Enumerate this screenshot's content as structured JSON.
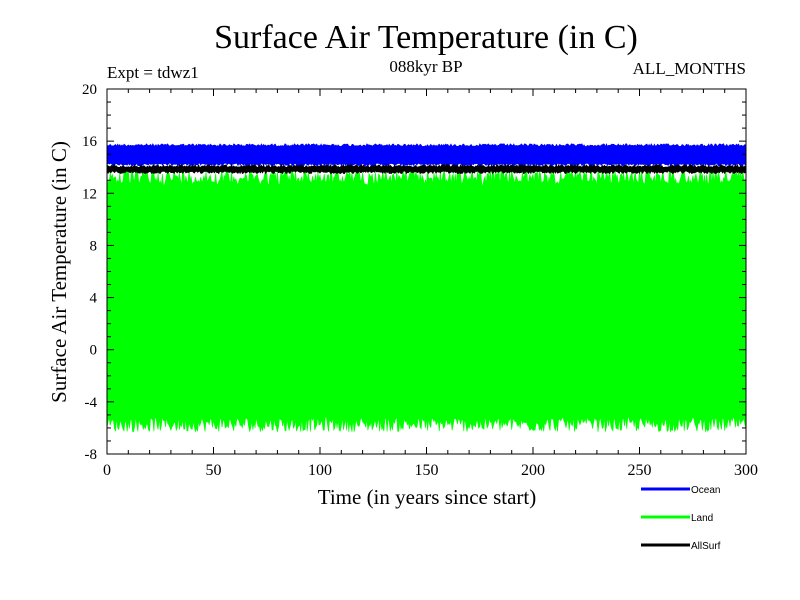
{
  "chart_data": {
    "type": "line",
    "title": "Surface Air Temperature (in C)",
    "subtitle_left": "Expt = tdwz1",
    "subtitle_center": "088kyr BP",
    "subtitle_right": "ALL_MONTHS",
    "xlabel": "Time (in years since start)",
    "ylabel": "Surface Air Temperature (in C)",
    "xlim": [
      0,
      300
    ],
    "ylim": [
      -8,
      20
    ],
    "x_ticks": [
      0,
      50,
      100,
      150,
      200,
      250,
      300
    ],
    "y_ticks": [
      -8,
      -4,
      0,
      4,
      8,
      12,
      16,
      20
    ],
    "legend_position": "below-right",
    "grid": false,
    "series": [
      {
        "name": "Ocean",
        "color": "#0000ff",
        "fill_min": 14.1,
        "fill_max": 15.8
      },
      {
        "name": "Land",
        "color": "#00ff00",
        "fill_min": -6.3,
        "fill_max": 13.8
      },
      {
        "name": "AllSurf",
        "color": "#000000",
        "fill_min": 13.5,
        "fill_max": 14.2
      }
    ]
  }
}
